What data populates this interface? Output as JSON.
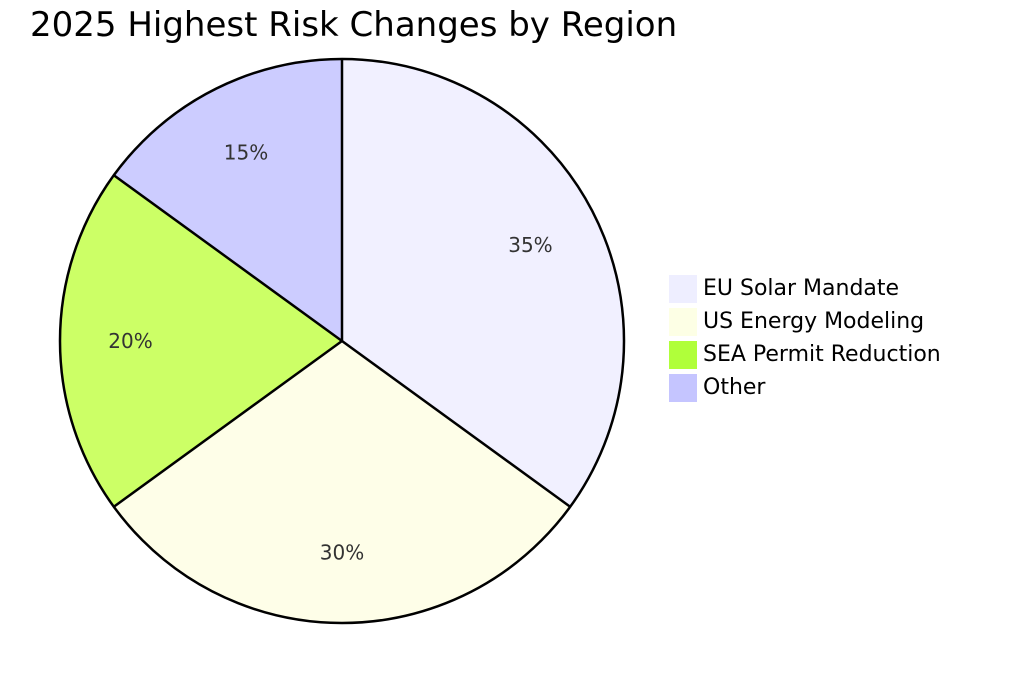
{
  "chart_data": {
    "type": "pie",
    "title": "2025 Highest Risk Changes by Region",
    "categories": [
      "EU Solar Mandate",
      "US Energy Modeling",
      "SEA Permit Reduction",
      "Other"
    ],
    "values": [
      35,
      30,
      20,
      15
    ],
    "labels": [
      "35%",
      "30%",
      "20%",
      "15%"
    ],
    "colors": [
      "#eeeeff",
      "#fdffe5",
      "#b0ff3a",
      "#c5c5ff"
    ],
    "slice_colors": [
      "#f1f0ff",
      "#fefee8",
      "#ccff66",
      "#ccccff"
    ],
    "legend_position": "right",
    "start_angle": "12 o'clock",
    "direction": "clockwise"
  }
}
